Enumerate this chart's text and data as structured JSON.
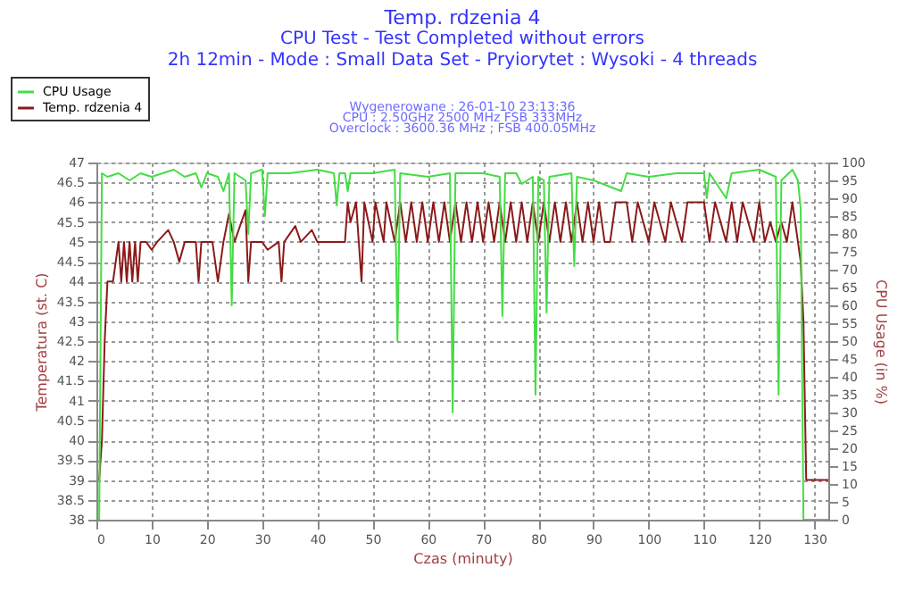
{
  "chart_data": {
    "type": "line",
    "title": "Temp. rdzenia 4",
    "subtitle": "CPU Test - Test Completed without errors\n2h 12min - Mode : Small Data Set - Pryiorytet : Wysoki - 4 threads",
    "annotations": [
      "Wygenerowane : 26-01-10 23:13:36",
      "CPU : 2.50GHz 2500 MHz FSB 333MHz",
      "Overclock : 3600.36 MHz ; FSB 400.05MHz"
    ],
    "xlabel": "Czas (minuty)",
    "ylabel": "Temperatura (st. C)",
    "y2label": "CPU Usage (in %)",
    "xlim": [
      0,
      132.5
    ],
    "xticks": [
      0,
      10,
      20,
      30,
      40,
      50,
      60,
      70,
      80,
      90,
      100,
      110,
      120,
      130
    ],
    "ylim": [
      38,
      47
    ],
    "yticks": [
      38,
      38.5,
      39,
      39.5,
      40,
      40.5,
      41,
      41.5,
      42,
      42.5,
      43,
      43.5,
      44,
      44.5,
      45,
      45.5,
      46,
      46.5,
      47
    ],
    "y2lim": [
      0,
      100
    ],
    "y2ticks": [
      0,
      5,
      10,
      15,
      20,
      25,
      30,
      35,
      40,
      45,
      50,
      55,
      60,
      65,
      70,
      75,
      80,
      85,
      90,
      95,
      100
    ],
    "grid": true,
    "legend": "top left",
    "line_style": "solid",
    "series": [
      {
        "name": "CPU Usage",
        "color": "#44dd44",
        "axis": "y2",
        "x": [
          0.5,
          1,
          2,
          4,
          6,
          8,
          10,
          12,
          14,
          16,
          18,
          19,
          20,
          22,
          23,
          24,
          24.5,
          25,
          27,
          27.5,
          28,
          30,
          30.5,
          31,
          35,
          40,
          43,
          43.5,
          44,
          45,
          45.5,
          46,
          50,
          54,
          54.5,
          55,
          60,
          64,
          64.5,
          65,
          70,
          73,
          73.5,
          74,
          76,
          77,
          79,
          79.5,
          80,
          81,
          81.5,
          82,
          86,
          86.5,
          87,
          90,
          95,
          96,
          100,
          105,
          110,
          110.5,
          111,
          114,
          115,
          120,
          123,
          123.5,
          124,
          126,
          127,
          127.5,
          128,
          132.5
        ],
        "values": [
          0,
          97,
          96,
          97,
          95,
          97,
          96,
          97,
          98,
          96,
          97,
          93,
          97,
          96,
          92,
          97,
          60,
          97,
          95,
          80,
          97,
          98,
          85,
          97,
          97,
          98,
          97,
          88,
          97,
          97,
          92,
          97,
          97,
          98,
          50,
          97,
          96,
          97,
          30,
          97,
          97,
          96,
          57,
          97,
          97,
          94,
          96,
          35,
          96,
          95,
          58,
          96,
          97,
          71,
          96,
          95,
          92,
          97,
          96,
          97,
          97,
          90,
          97,
          90,
          97,
          98,
          96,
          35,
          95,
          98,
          95,
          87,
          0,
          0
        ]
      },
      {
        "name": "Temp. rdzenia 4",
        "color": "#8b1a1a",
        "x": [
          0.5,
          1,
          1.5,
          2,
          3,
          3.5,
          4,
          4.5,
          5,
          5.5,
          6,
          6.5,
          7,
          7.5,
          8,
          9,
          10,
          11,
          13,
          14,
          15,
          16,
          18,
          18.5,
          19,
          21,
          22,
          23,
          24,
          25,
          27,
          27.5,
          28,
          30,
          31,
          33,
          33.5,
          34,
          36,
          37,
          39,
          40,
          45,
          45.5,
          46,
          47,
          48,
          48.5,
          50,
          50.5,
          52,
          52.5,
          54,
          55,
          56,
          57,
          58,
          59,
          60,
          61,
          62,
          63,
          64,
          65,
          66,
          67,
          68,
          69,
          70,
          71,
          72,
          73,
          74,
          75,
          76,
          77,
          78,
          79,
          80,
          81,
          82,
          83,
          84,
          85,
          86,
          87,
          88,
          89,
          90,
          91,
          92,
          93,
          94,
          96,
          97,
          98,
          100,
          101,
          103,
          104,
          106,
          107,
          110,
          111,
          112,
          114,
          115,
          116,
          117,
          119,
          120,
          121,
          122,
          123,
          124,
          125,
          126,
          127,
          127.5,
          128,
          128.5,
          132.5
        ],
        "values": [
          39,
          40,
          42.5,
          44,
          44,
          44.5,
          45,
          44,
          45,
          44,
          45,
          44,
          45,
          44,
          45,
          45,
          44.8,
          45,
          45.3,
          45,
          44.5,
          45,
          45,
          44,
          45,
          45,
          44,
          45,
          45.7,
          45,
          45.8,
          44,
          45,
          45,
          44.8,
          45,
          44,
          45,
          45.4,
          45,
          45.3,
          45,
          45,
          46,
          45.5,
          46,
          44,
          46,
          45,
          46,
          45,
          46,
          45,
          46,
          45,
          46,
          45,
          46,
          45,
          46,
          45,
          46,
          45,
          46,
          45,
          46,
          45,
          46,
          45,
          46,
          45,
          46,
          45,
          46,
          45,
          46,
          45,
          46,
          45,
          46,
          45,
          46,
          45,
          46,
          45,
          46,
          45,
          46,
          45,
          46,
          45,
          45,
          46,
          46,
          45,
          46,
          45,
          46,
          45,
          46,
          45,
          46,
          46,
          45,
          46,
          45,
          46,
          45,
          46,
          45,
          46,
          45,
          45.5,
          45,
          45.5,
          45,
          46,
          45,
          44.5,
          43,
          39,
          39
        ]
      }
    ]
  }
}
